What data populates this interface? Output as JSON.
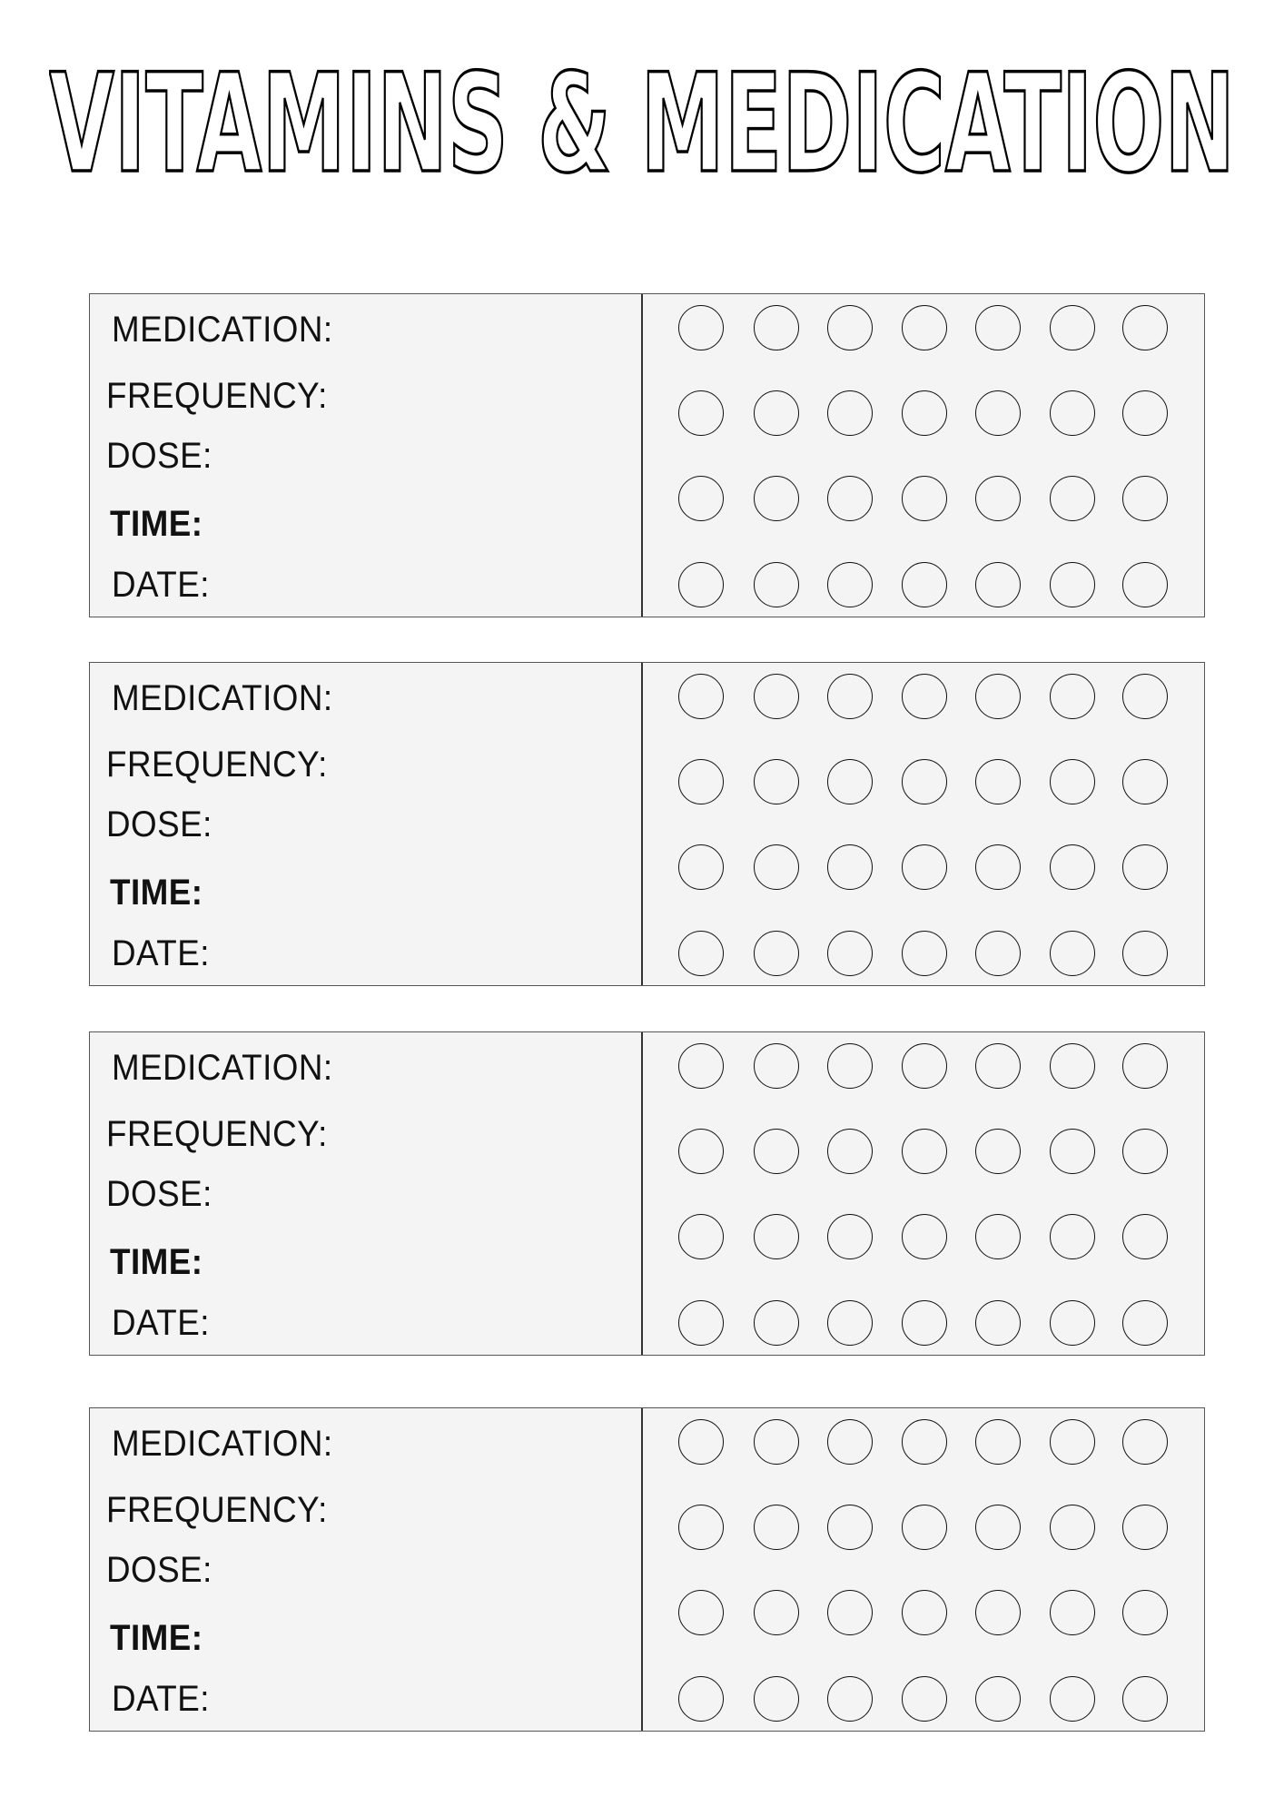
{
  "title": "VITAMINS & MEDICATION",
  "cards": [
    {
      "labels": [
        "MEDICATION:",
        "FREQUENCY:",
        "DOSE:",
        "TIME:",
        "DATE:"
      ]
    },
    {
      "labels": [
        "MEDICATION:",
        "FREQUENCY:",
        "DOSE:",
        "TIME:",
        "DATE:"
      ]
    },
    {
      "labels": [
        "MEDICATION:",
        "FREQUENCY:",
        "DOSE:",
        "TIME:",
        "DATE:"
      ]
    },
    {
      "labels": [
        "MEDICATION:",
        "FREQUENCY:",
        "DOSE:",
        "TIME:",
        "DATE:"
      ]
    }
  ],
  "tracker": {
    "rows": 4,
    "columns": 7
  },
  "colors": {
    "card_bg": "#f4f4f4",
    "border": "#555555",
    "ink": "#111111"
  }
}
